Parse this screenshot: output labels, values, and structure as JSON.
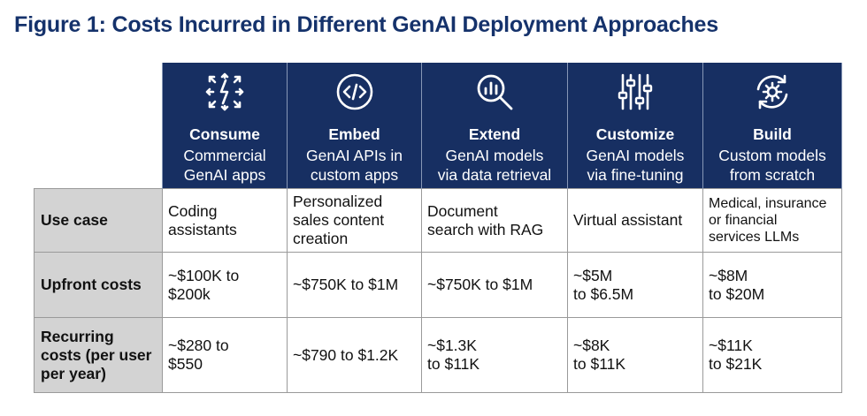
{
  "title": "Figure 1: Costs Incurred in Different GenAI Deployment Approaches",
  "approaches": [
    {
      "icon": "arrows-icon",
      "name": "Consume",
      "desc": [
        "Commercial",
        "GenAI apps"
      ]
    },
    {
      "icon": "code-icon",
      "name": "Embed",
      "desc": [
        "GenAI APIs in",
        "custom apps"
      ]
    },
    {
      "icon": "search-chart-icon",
      "name": "Extend",
      "desc": [
        "GenAI models",
        "via data retrieval"
      ]
    },
    {
      "icon": "sliders-icon",
      "name": "Customize",
      "desc": [
        "GenAI models",
        "via fine-tuning"
      ]
    },
    {
      "icon": "gear-cycle-icon",
      "name": "Build",
      "desc": [
        "Custom models",
        "from scratch"
      ]
    }
  ],
  "rows": [
    {
      "label": "Use case",
      "cells": [
        [
          "Coding",
          "assistants"
        ],
        [
          "Personalized",
          "sales content",
          "creation"
        ],
        [
          "Document",
          "search with RAG"
        ],
        [
          "Virtual assistant"
        ],
        [
          "Medical, insurance",
          "or financial",
          "services LLMs"
        ]
      ]
    },
    {
      "label": "Upfront costs",
      "cells": [
        [
          "~$100K to",
          "$200k"
        ],
        [
          "~$750K to $1M"
        ],
        [
          "~$750K to $1M"
        ],
        [
          "~$5M",
          "to $6.5M"
        ],
        [
          "~$8M",
          "to $20M"
        ]
      ]
    },
    {
      "label": [
        "Recurring",
        "costs (per user",
        "per year)"
      ],
      "cells": [
        [
          "~$280 to",
          "$550"
        ],
        [
          "~$790 to $1.2K"
        ],
        [
          "~$1.3K",
          "to $11K"
        ],
        [
          "~$8K",
          "to $11K"
        ],
        [
          "~$11K",
          "to $21K"
        ]
      ]
    }
  ],
  "colors": {
    "title": "#15326b",
    "header_bg": "#172f62",
    "row_header_bg": "#d3d3d3",
    "border": "#9a9a9a"
  }
}
